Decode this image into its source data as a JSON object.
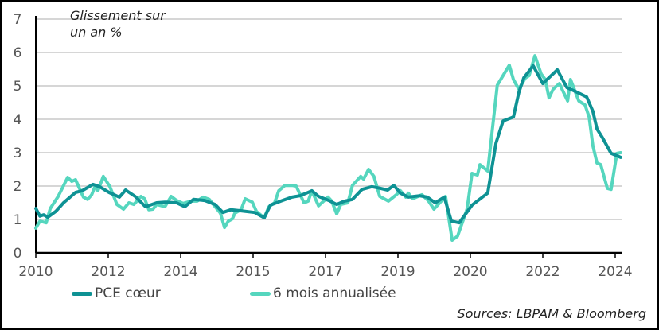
{
  "chart_data": {
    "type": "line",
    "annotation": [
      "Glissement sur",
      "un an %"
    ],
    "source": "Sources: LBPAM & Bloomberg",
    "ylim": [
      0,
      7
    ],
    "yticks": [
      0,
      1,
      2,
      3,
      4,
      5,
      6,
      7
    ],
    "xlim": [
      2010,
      2024.2
    ],
    "xtick_labels": [
      "2010",
      "2012",
      "2014",
      "2015",
      "2017",
      "2019",
      "2020",
      "2022",
      "2024"
    ],
    "grid": "horizontal",
    "legend_position": "bottom",
    "series": [
      {
        "name": "PCE cœur",
        "color": "#0E9294",
        "points": [
          [
            2010.0,
            1.33
          ],
          [
            2010.1,
            1.1
          ],
          [
            2010.19,
            1.14
          ],
          [
            2010.29,
            1.07
          ],
          [
            2010.48,
            1.24
          ],
          [
            2010.67,
            1.5
          ],
          [
            2010.96,
            1.81
          ],
          [
            2011.12,
            1.86
          ],
          [
            2011.38,
            2.05
          ],
          [
            2011.54,
            1.98
          ],
          [
            2011.77,
            1.81
          ],
          [
            2012.02,
            1.67
          ],
          [
            2012.17,
            1.88
          ],
          [
            2012.4,
            1.69
          ],
          [
            2012.65,
            1.38
          ],
          [
            2012.92,
            1.5
          ],
          [
            2013.12,
            1.52
          ],
          [
            2013.4,
            1.5
          ],
          [
            2013.6,
            1.38
          ],
          [
            2013.81,
            1.6
          ],
          [
            2014.08,
            1.57
          ],
          [
            2014.33,
            1.45
          ],
          [
            2014.52,
            1.21
          ],
          [
            2014.71,
            1.29
          ],
          [
            2014.96,
            1.26
          ],
          [
            2015.29,
            1.21
          ],
          [
            2015.52,
            1.05
          ],
          [
            2015.67,
            1.43
          ],
          [
            2015.92,
            1.55
          ],
          [
            2016.19,
            1.67
          ],
          [
            2016.38,
            1.71
          ],
          [
            2016.54,
            1.79
          ],
          [
            2016.67,
            1.86
          ],
          [
            2016.83,
            1.69
          ],
          [
            2017.08,
            1.57
          ],
          [
            2017.27,
            1.45
          ],
          [
            2017.46,
            1.55
          ],
          [
            2017.65,
            1.6
          ],
          [
            2017.88,
            1.9
          ],
          [
            2018.12,
            1.98
          ],
          [
            2018.33,
            1.93
          ],
          [
            2018.5,
            1.88
          ],
          [
            2018.65,
            2.02
          ],
          [
            2018.81,
            1.79
          ],
          [
            2019.0,
            1.67
          ],
          [
            2019.27,
            1.71
          ],
          [
            2019.46,
            1.67
          ],
          [
            2019.65,
            1.5
          ],
          [
            2019.87,
            1.67
          ],
          [
            2020.04,
            0.95
          ],
          [
            2020.23,
            0.9
          ],
          [
            2020.54,
            1.43
          ],
          [
            2020.92,
            1.79
          ],
          [
            2021.12,
            3.29
          ],
          [
            2021.29,
            3.95
          ],
          [
            2021.54,
            4.07
          ],
          [
            2021.67,
            4.79
          ],
          [
            2021.79,
            5.24
          ],
          [
            2022.02,
            5.6
          ],
          [
            2022.25,
            5.07
          ],
          [
            2022.6,
            5.48
          ],
          [
            2022.83,
            4.95
          ],
          [
            2023.04,
            4.83
          ],
          [
            2023.31,
            4.67
          ],
          [
            2023.46,
            4.24
          ],
          [
            2023.56,
            3.71
          ],
          [
            2023.69,
            3.45
          ],
          [
            2023.9,
            2.98
          ],
          [
            2024.13,
            2.86
          ]
        ]
      },
      {
        "name": "6 mois annualisée",
        "color": "#55D6BE",
        "points": [
          [
            2010.0,
            0.74
          ],
          [
            2010.1,
            0.95
          ],
          [
            2010.25,
            0.9
          ],
          [
            2010.35,
            1.33
          ],
          [
            2010.54,
            1.69
          ],
          [
            2010.77,
            2.26
          ],
          [
            2010.87,
            2.14
          ],
          [
            2010.96,
            2.19
          ],
          [
            2011.15,
            1.67
          ],
          [
            2011.25,
            1.6
          ],
          [
            2011.35,
            1.74
          ],
          [
            2011.44,
            2.02
          ],
          [
            2011.5,
            1.86
          ],
          [
            2011.63,
            2.29
          ],
          [
            2011.79,
            1.98
          ],
          [
            2011.96,
            1.45
          ],
          [
            2012.12,
            1.31
          ],
          [
            2012.25,
            1.5
          ],
          [
            2012.37,
            1.45
          ],
          [
            2012.54,
            1.69
          ],
          [
            2012.63,
            1.62
          ],
          [
            2012.73,
            1.29
          ],
          [
            2012.83,
            1.31
          ],
          [
            2012.92,
            1.45
          ],
          [
            2013.12,
            1.38
          ],
          [
            2013.27,
            1.69
          ],
          [
            2013.4,
            1.57
          ],
          [
            2013.56,
            1.48
          ],
          [
            2013.75,
            1.55
          ],
          [
            2013.9,
            1.55
          ],
          [
            2014.04,
            1.67
          ],
          [
            2014.19,
            1.6
          ],
          [
            2014.38,
            1.31
          ],
          [
            2014.46,
            1.19
          ],
          [
            2014.56,
            0.76
          ],
          [
            2014.65,
            0.95
          ],
          [
            2014.75,
            1.02
          ],
          [
            2014.81,
            1.19
          ],
          [
            2014.96,
            1.29
          ],
          [
            2015.06,
            1.62
          ],
          [
            2015.23,
            1.52
          ],
          [
            2015.33,
            1.24
          ],
          [
            2015.52,
            1.05
          ],
          [
            2015.63,
            1.38
          ],
          [
            2015.77,
            1.5
          ],
          [
            2015.87,
            1.86
          ],
          [
            2016.02,
            2.02
          ],
          [
            2016.19,
            2.02
          ],
          [
            2016.29,
            2.0
          ],
          [
            2016.48,
            1.5
          ],
          [
            2016.58,
            1.55
          ],
          [
            2016.67,
            1.86
          ],
          [
            2016.83,
            1.41
          ],
          [
            2017.06,
            1.67
          ],
          [
            2017.15,
            1.55
          ],
          [
            2017.27,
            1.17
          ],
          [
            2017.37,
            1.45
          ],
          [
            2017.54,
            1.5
          ],
          [
            2017.65,
            2.02
          ],
          [
            2017.85,
            2.29
          ],
          [
            2017.92,
            2.21
          ],
          [
            2018.04,
            2.5
          ],
          [
            2018.17,
            2.29
          ],
          [
            2018.31,
            1.69
          ],
          [
            2018.52,
            1.55
          ],
          [
            2018.71,
            1.74
          ],
          [
            2018.81,
            1.86
          ],
          [
            2018.94,
            1.67
          ],
          [
            2019.0,
            1.79
          ],
          [
            2019.1,
            1.62
          ],
          [
            2019.33,
            1.74
          ],
          [
            2019.48,
            1.57
          ],
          [
            2019.62,
            1.31
          ],
          [
            2019.9,
            1.69
          ],
          [
            2020.06,
            0.38
          ],
          [
            2020.19,
            0.5
          ],
          [
            2020.42,
            1.31
          ],
          [
            2020.54,
            2.38
          ],
          [
            2020.67,
            2.33
          ],
          [
            2020.73,
            2.64
          ],
          [
            2020.92,
            2.45
          ],
          [
            2021.15,
            5.02
          ],
          [
            2021.44,
            5.62
          ],
          [
            2021.54,
            5.19
          ],
          [
            2021.67,
            4.9
          ],
          [
            2021.83,
            5.24
          ],
          [
            2021.92,
            5.31
          ],
          [
            2022.06,
            5.9
          ],
          [
            2022.21,
            5.36
          ],
          [
            2022.31,
            5.19
          ],
          [
            2022.4,
            4.64
          ],
          [
            2022.5,
            4.9
          ],
          [
            2022.65,
            5.07
          ],
          [
            2022.85,
            4.55
          ],
          [
            2022.92,
            5.19
          ],
          [
            2023.12,
            4.55
          ],
          [
            2023.27,
            4.43
          ],
          [
            2023.37,
            4.07
          ],
          [
            2023.46,
            3.21
          ],
          [
            2023.56,
            2.69
          ],
          [
            2023.65,
            2.64
          ],
          [
            2023.81,
            1.93
          ],
          [
            2023.9,
            1.9
          ],
          [
            2024.04,
            2.98
          ],
          [
            2024.13,
            3.0
          ]
        ]
      }
    ]
  }
}
